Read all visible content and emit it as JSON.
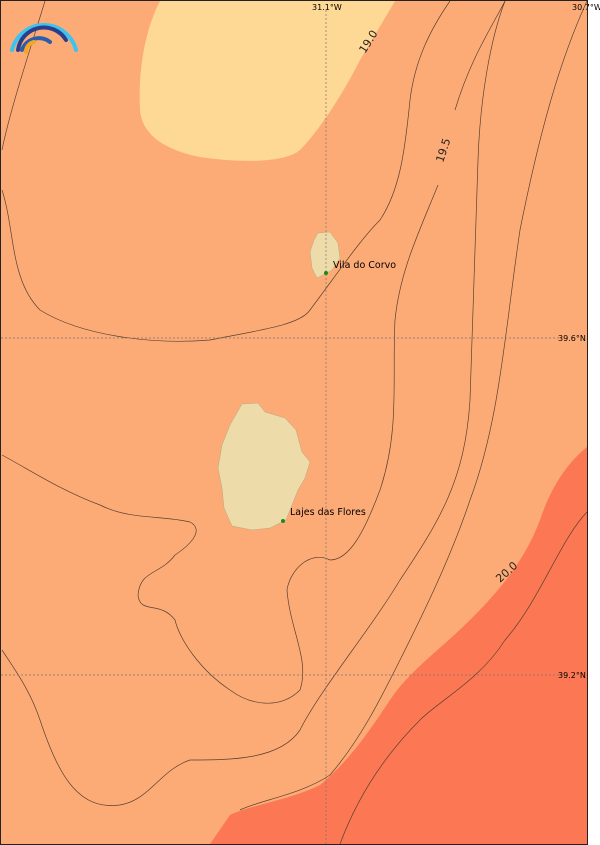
{
  "map": {
    "longitude_labels": [
      "31.1°W",
      "30.7°W"
    ],
    "latitude_labels": [
      "39.6°N",
      "39.2°N"
    ],
    "contour_labels": [
      "19.0",
      "19.5",
      "20.0"
    ],
    "places": [
      {
        "name": "Vila do Corvo"
      },
      {
        "name": "Lajes das Flores"
      }
    ],
    "colors": {
      "band_low": "#fed995",
      "band_mid": "#fdab76",
      "band_high": "#fc7753",
      "land": "#eddcaa",
      "town_marker": "#1a8a1a"
    },
    "logo_icon": "rainbow-arcs-logo"
  }
}
